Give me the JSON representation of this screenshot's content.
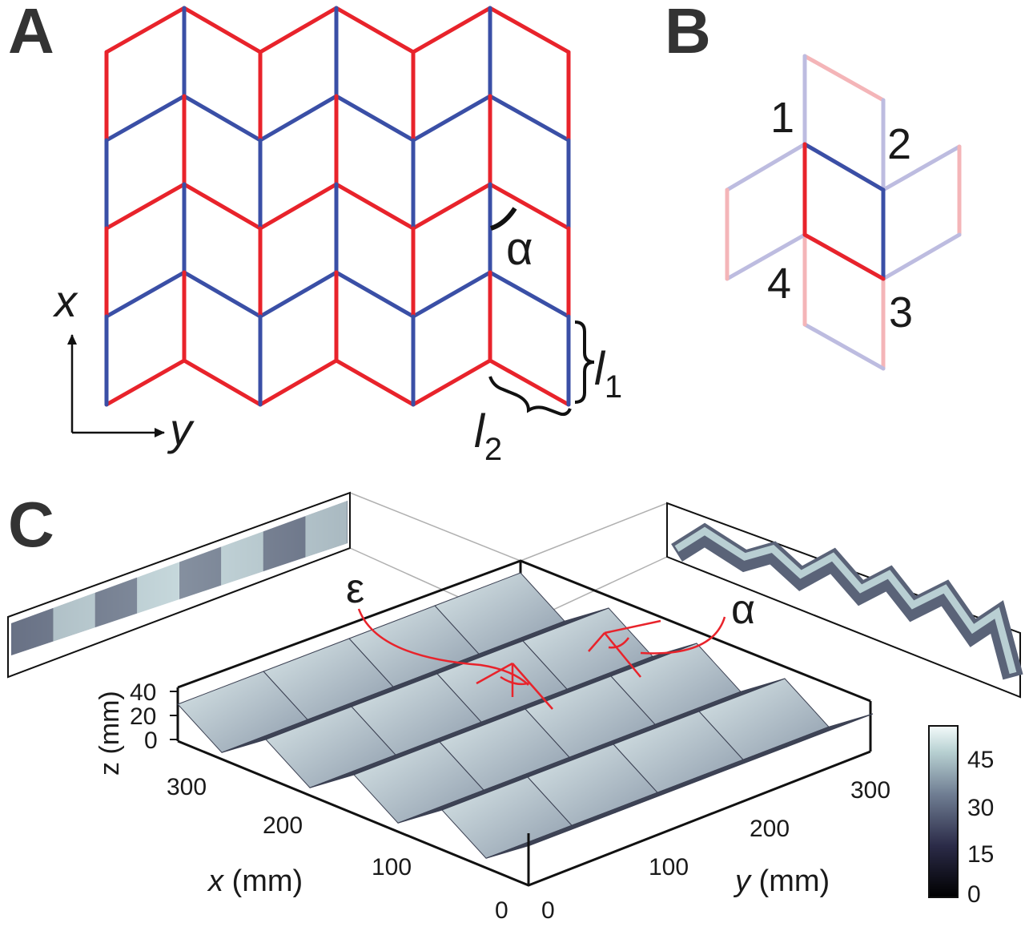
{
  "colors": {
    "mountain": "#e8232b",
    "valley": "#3a4fa6",
    "mountain_faded": "#f4b5b8",
    "valley_faded": "#bdbce0",
    "surface_dark": "#2a2d3d",
    "surface_light": "#c6d8da"
  },
  "panel_a": {
    "letter": "A",
    "axis_x": "x",
    "axis_y": "y",
    "angle": "α",
    "l1_letter": "l",
    "l1_sub": "1",
    "l2_letter": "l",
    "l2_sub": "2"
  },
  "panel_b": {
    "letter": "B",
    "vertex_labels": [
      "1",
      "2",
      "3",
      "4"
    ]
  },
  "panel_c": {
    "letter": "C",
    "epsilon": "ε",
    "alpha": "α",
    "z_axis_label": "z (mm)",
    "z_ticks": [
      "40",
      "20",
      "0"
    ],
    "x_axis_label_var": "x",
    "x_axis_label_unit": " (mm)",
    "x_ticks": [
      "300",
      "200",
      "100",
      "0"
    ],
    "y_axis_label_var": "y",
    "y_axis_label_unit": " (mm)",
    "y_ticks": [
      "0",
      "100",
      "200",
      "300"
    ],
    "colorbar_ticks": [
      "45",
      "30",
      "15",
      "0"
    ]
  }
}
